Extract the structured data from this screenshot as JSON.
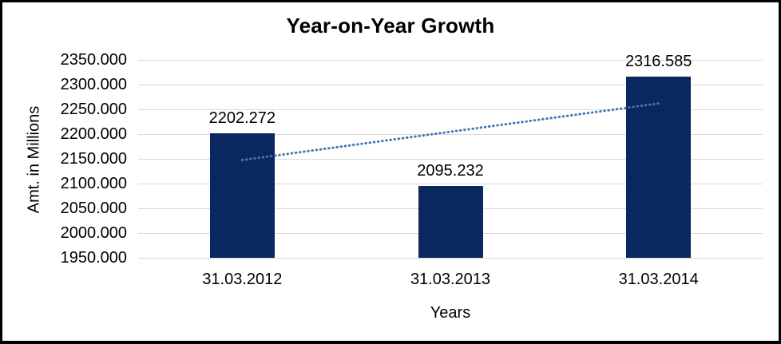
{
  "chart_data": {
    "type": "bar",
    "title": "Year-on-Year Growth",
    "xlabel": "Years",
    "ylabel": "Amt. in Millions",
    "categories": [
      "31.03.2012",
      "31.03.2013",
      "31.03.2014"
    ],
    "values": [
      2202.272,
      2095.232,
      2316.585
    ],
    "data_labels": [
      "2202.272",
      "2095.232",
      "2316.585"
    ],
    "ylim": [
      1950,
      2350
    ],
    "ytick_step": 50,
    "ytick_labels": [
      "1950.000",
      "2000.000",
      "2050.000",
      "2100.000",
      "2150.000",
      "2200.000",
      "2250.000",
      "2300.000",
      "2350.000"
    ],
    "grid": true,
    "legend": "none",
    "trendline": {
      "type": "linear",
      "style": "dotted",
      "endpoints_values": [
        2147.54,
        2261.853
      ]
    },
    "colors": {
      "bar": "#0B2760",
      "trendline": "#4476B5",
      "gridline": "#D9D9D9",
      "text": "#000000",
      "background": "#FFFFFF",
      "frame_border": "#000000"
    }
  }
}
